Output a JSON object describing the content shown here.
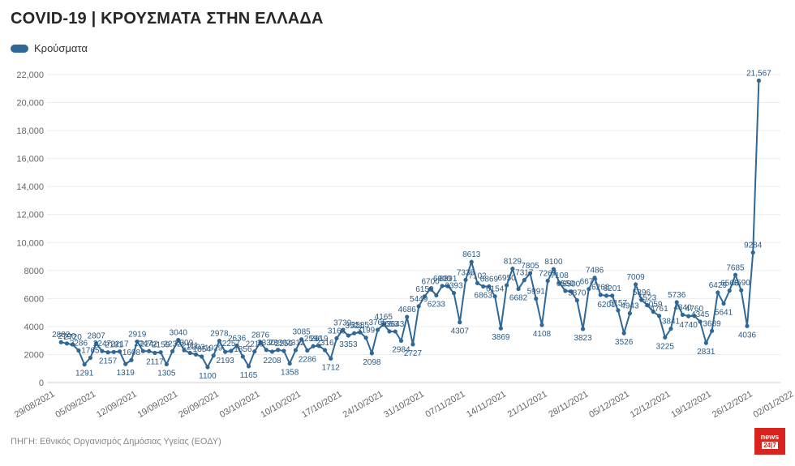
{
  "header": {
    "title": "COVID-19 | ΚΡΟΥΣΜΑΤΑ ΣΤΗΝ ΕΛΛΑΔΑ"
  },
  "legend": {
    "label": "Κρούσματα",
    "color": "#2f6796"
  },
  "footer": {
    "source": "ΠΗΓΗ: Εθνικός Οργανισμός Δημόσιας Υγείας (ΕΟΔΥ)"
  },
  "logo": {
    "line1": "news",
    "line2": "24|7"
  },
  "chart_data": {
    "type": "line",
    "series": [
      {
        "name": "Κρούσματα",
        "color": "#2f6796",
        "values": [
          2882,
          2790,
          2720,
          2286,
          1291,
          1765,
          2807,
          2247,
          2157,
          2181,
          2217,
          1319,
          1608,
          2919,
          2247,
          2242,
          2117,
          2159,
          1305,
          2232,
          3040,
          2309,
          2111,
          2003,
          1854,
          1100,
          1929,
          2978,
          2193,
          2257,
          2636,
          1856,
          1165,
          2219,
          2876,
          2330,
          2208,
          2330,
          2259,
          1358,
          2312,
          3085,
          2286,
          2596,
          2619,
          2316,
          1712,
          3163,
          3739,
          3353,
          3521,
          3585,
          3199,
          2098,
          3765,
          4165,
          3653,
          3643,
          2984,
          4686,
          2727,
          5449,
          6150,
          6700,
          6233,
          6900,
          6891,
          6393,
          4307,
          7335,
          8613,
          7102,
          6863,
          6869,
          6154,
          3869,
          6950,
          8129,
          6682,
          7317,
          7805,
          5991,
          4108,
          7267,
          8100,
          7108,
          6550,
          6500,
          5870,
          3823,
          6677,
          7486,
          6268,
          6201,
          6201,
          5157,
          3526,
          4943,
          7009,
          5896,
          5523,
          5059,
          4761,
          3225,
          3841,
          5736,
          4840,
          4740,
          4760,
          4345,
          2831,
          3689,
          6429,
          5641,
          6566,
          7685,
          6590,
          4036,
          9284,
          21567
        ],
        "labels": [
          "2882",
          "2790",
          "2720",
          "2286",
          "1291",
          "1765",
          "2807",
          "2247",
          "2157",
          "2181",
          "2217",
          "1319",
          "1608",
          "2919",
          "2247",
          "2242",
          "2117",
          "2159",
          "1305",
          "2232",
          "3040",
          "2309",
          "2111",
          "2003",
          "1854",
          "1100",
          "1929",
          "2978",
          "2193",
          "2257",
          "2636",
          "1856",
          "1165",
          "2219",
          "2876",
          "2330",
          "2208",
          "2330",
          "2259",
          "1358",
          "2312",
          "3085",
          "2286",
          "2596",
          "2619",
          "2316",
          "1712",
          "3163",
          "3739",
          "3353",
          "3521",
          "3585",
          "3199",
          "2098",
          "3765",
          "4165",
          "3653",
          "3643",
          "2984",
          "4686",
          "2727",
          "5449",
          "6150",
          "6700",
          "6233",
          "6900",
          "6891",
          "6393",
          "4307",
          "7335",
          "8613",
          "7102",
          "6863",
          "6869",
          "6154",
          "3869",
          "6950",
          "8129",
          "6682",
          "7317",
          "7805",
          "5991",
          "4108",
          "7267",
          "8100",
          "7108",
          "6550",
          "6500",
          "5870",
          "3823",
          "6677",
          "7486",
          "6268",
          "6201",
          "6201",
          "5157",
          "3526",
          "4943",
          "7009",
          "5896",
          "5523",
          "5059",
          "4761",
          "3225",
          "3841",
          "5736",
          "4840",
          "4740",
          "4760",
          "4345",
          "2831",
          "3689",
          "6429",
          "5641",
          "6566",
          "7685",
          "6590",
          "4036",
          "9284",
          "21,567"
        ]
      }
    ],
    "x_start": "2021-08-30",
    "x_ticks": [
      "29/08/2021",
      "05/09/2021",
      "12/09/2021",
      "19/09/2021",
      "26/09/2021",
      "03/10/2021",
      "10/10/2021",
      "17/10/2021",
      "24/10/2021",
      "31/10/2021",
      "07/11/2021",
      "14/11/2021",
      "21/11/2021",
      "28/11/2021",
      "05/12/2021",
      "12/12/2021",
      "19/12/2021",
      "26/12/2021",
      "02/01/2022"
    ],
    "y_ticks": [
      "0",
      "2000",
      "4000",
      "6000",
      "8000",
      "10,000",
      "12,000",
      "14,000",
      "16,000",
      "18,000",
      "20,000",
      "22,000"
    ],
    "ylim": [
      0,
      22000
    ],
    "grid": true,
    "legend_position": "top-left"
  }
}
